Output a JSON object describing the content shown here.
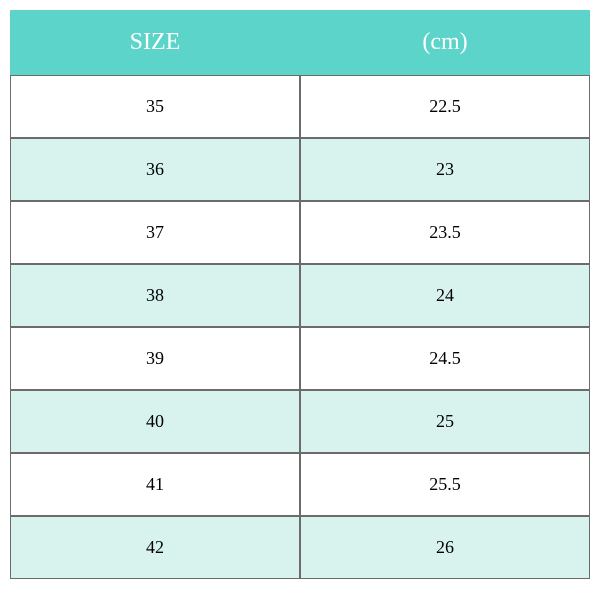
{
  "sizeTable": {
    "type": "table",
    "columns": [
      "SIZE",
      "(cm)"
    ],
    "rows": [
      [
        "35",
        "22.5"
      ],
      [
        "36",
        "23"
      ],
      [
        "37",
        "23.5"
      ],
      [
        "38",
        "24"
      ],
      [
        "39",
        "24.5"
      ],
      [
        "40",
        "25"
      ],
      [
        "41",
        "25.5"
      ],
      [
        "42",
        "26"
      ]
    ],
    "header_bg_color": "#5dd4c9",
    "header_text_color": "#ffffff",
    "header_fontsize": 24,
    "row_odd_bg_color": "#ffffff",
    "row_even_bg_color": "#d8f3ee",
    "row_text_color": "#000000",
    "row_fontsize": 18,
    "border_color": "#6b6b6b",
    "header_border_color": "#5dd4c9",
    "font_family": "serif"
  }
}
